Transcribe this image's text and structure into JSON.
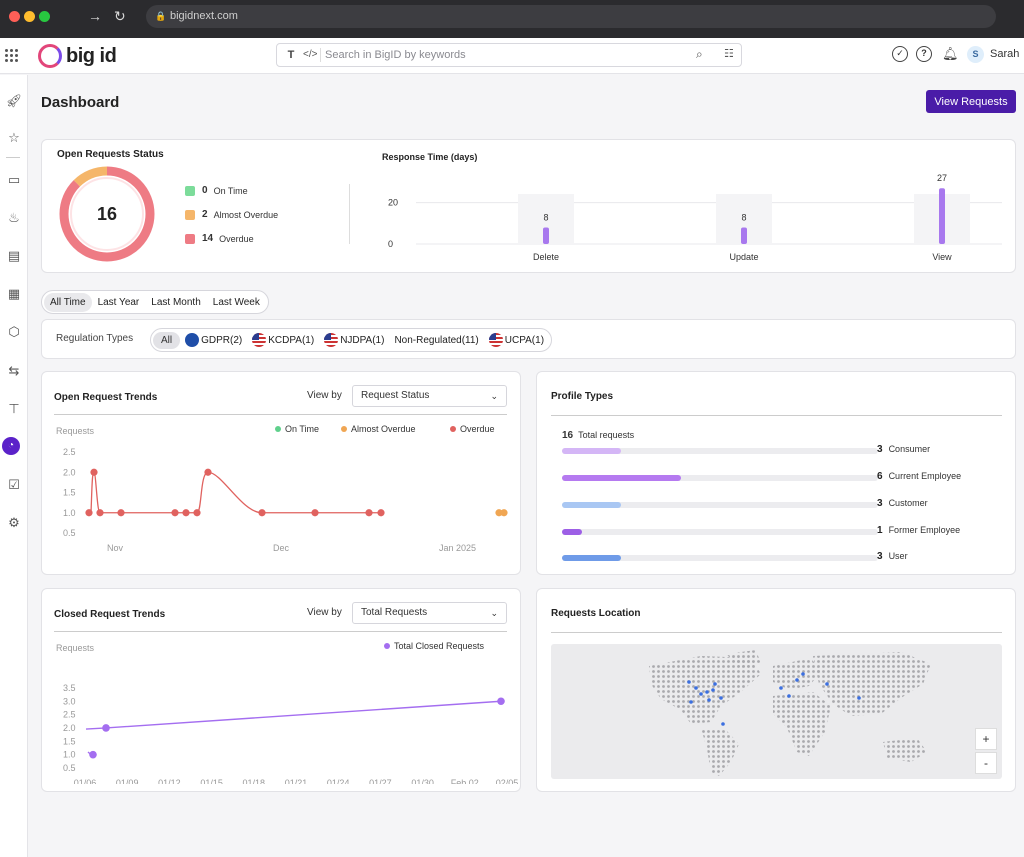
{
  "browser": {
    "url": "bigidnext.com"
  },
  "header": {
    "logo_text": "big id",
    "search_placeholder": "Search in BigID by keywords",
    "search_t": "T",
    "search_code": "</>",
    "user_initial": "S",
    "user_name": "Sarah"
  },
  "page": {
    "title": "Dashboard",
    "view_requests": "View Requests"
  },
  "status": {
    "title": "Open Requests Status",
    "total": "16",
    "legend": [
      {
        "count": "0",
        "label": "On Time",
        "color": "#7cdc9a"
      },
      {
        "count": "2",
        "label": "Almost Overdue",
        "color": "#f5b66a"
      },
      {
        "count": "14",
        "label": "Overdue",
        "color": "#ee7b84"
      }
    ],
    "colors": {
      "on_time": "#7cdc9a",
      "almost_overdue": "#f5b66a",
      "overdue": "#ee7b84"
    }
  },
  "response_time": {
    "title": "Response Time (days)",
    "chart_data": {
      "type": "bar",
      "categories": [
        "Delete",
        "Update",
        "View"
      ],
      "values": [
        8,
        8,
        27
      ],
      "ytick_labels": [
        "20",
        "0"
      ],
      "bar_color": "#a878ee"
    }
  },
  "filters": {
    "time": [
      "All Time",
      "Last Year",
      "Last Month",
      "Last Week"
    ],
    "time_selected": "All Time",
    "regulation_label": "Regulation Types",
    "regulations": [
      {
        "label": "All",
        "flag": ""
      },
      {
        "label": "GDPR(2)",
        "flag": "eu"
      },
      {
        "label": "KCDPA(1)",
        "flag": "us"
      },
      {
        "label": "NJDPA(1)",
        "flag": "us"
      },
      {
        "label": "Non-Regulated(11)",
        "flag": ""
      },
      {
        "label": "UCPA(1)",
        "flag": "us"
      }
    ]
  },
  "open_trends": {
    "title": "Open Request Trends",
    "view_by_label": "View by",
    "view_by_value": "Request Status",
    "ylabel": "Requests",
    "legend": [
      {
        "label": "On Time",
        "color": "#5fd08c"
      },
      {
        "label": "Almost Overdue",
        "color": "#f0a653"
      },
      {
        "label": "Overdue",
        "color": "#e0625f"
      }
    ],
    "chart_data": {
      "type": "line",
      "yticks": [
        "2.5",
        "2.0",
        "1.5",
        "1.0",
        "0.5"
      ],
      "xtick_labels": [
        "Nov",
        "Dec",
        "Jan 2025"
      ],
      "series": [
        {
          "name": "Overdue",
          "values": [
            1,
            2,
            1,
            1,
            1,
            1,
            1,
            2,
            1,
            1,
            1,
            1
          ]
        },
        {
          "name": "Almost Overdue",
          "values": [
            1,
            1
          ]
        }
      ]
    }
  },
  "profile_types": {
    "title": "Profile Types",
    "total_count": "16",
    "total_label": "Total requests",
    "items": [
      {
        "count": "3",
        "label": "Consumer",
        "value": 3,
        "color": "#d4b6f6"
      },
      {
        "count": "6",
        "label": "Current Employee",
        "value": 6,
        "color": "#b57af0"
      },
      {
        "count": "3",
        "label": "Customer",
        "value": 3,
        "color": "#a9c7f3"
      },
      {
        "count": "1",
        "label": "Former Employee",
        "value": 1,
        "color": "#9d5fe6"
      },
      {
        "count": "3",
        "label": "User",
        "value": 3,
        "color": "#6f9be8"
      }
    ],
    "max": 16
  },
  "closed_trends": {
    "title": "Closed Request Trends",
    "view_by_label": "View by",
    "view_by_value": "Total Requests",
    "ylabel": "Requests",
    "legend_label": "Total Closed Requests",
    "legend_color": "#a46ef0",
    "chart_data": {
      "type": "line",
      "yticks": [
        "3.5",
        "3.0",
        "2.5",
        "2.0",
        "1.5",
        "1.0",
        "0.5"
      ],
      "xtick_labels": [
        "01/06",
        "01/09",
        "01/12",
        "01/15",
        "01/18",
        "01/21",
        "01/24",
        "01/27",
        "01/30",
        "Feb 02",
        "02/05"
      ],
      "series": [
        {
          "name": "Total Closed Requests",
          "values": [
            1,
            2,
            3
          ]
        }
      ]
    }
  },
  "location": {
    "title": "Requests Location",
    "zoom_in": "+",
    "zoom_out": "-"
  }
}
